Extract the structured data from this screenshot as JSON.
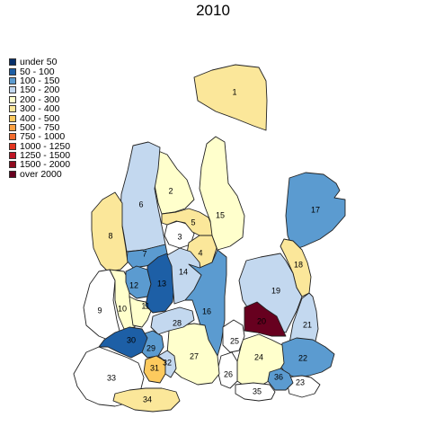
{
  "title": "2010",
  "legend": [
    {
      "label": "under 50",
      "color": "#08306b"
    },
    {
      "label": "50 - 100",
      "color": "#1d5fa6"
    },
    {
      "label": "100 - 150",
      "color": "#5b9bd0"
    },
    {
      "label": "150 - 200",
      "color": "#c3d8ef"
    },
    {
      "label": "200 - 300",
      "color": "#ffffcc"
    },
    {
      "label": "300 - 400",
      "color": "#fbe79a"
    },
    {
      "label": "400 - 500",
      "color": "#fdca5e"
    },
    {
      "label": "500 - 750",
      "color": "#fda142"
    },
    {
      "label": "750 - 1000",
      "color": "#f26b2d"
    },
    {
      "label": "1000 - 1250",
      "color": "#e2341f"
    },
    {
      "label": "1250 - 1500",
      "color": "#bf1424"
    },
    {
      "label": "1500 - 2000",
      "color": "#8f0a1e"
    },
    {
      "label": "over 2000",
      "color": "#67001f"
    }
  ],
  "regions": [
    {
      "id": "1",
      "color": "#fbe79a"
    },
    {
      "id": "2",
      "color": "#ffffcc"
    },
    {
      "id": "3",
      "color": "#ffffff"
    },
    {
      "id": "4",
      "color": "#fbe79a"
    },
    {
      "id": "5",
      "color": "#fbe79a"
    },
    {
      "id": "6",
      "color": "#c3d8ef"
    },
    {
      "id": "7",
      "color": "#5b9bd0"
    },
    {
      "id": "8",
      "color": "#fbe79a"
    },
    {
      "id": "9",
      "color": "#ffffff"
    },
    {
      "id": "10",
      "color": "#ffffcc"
    },
    {
      "id": "11",
      "color": "#ffffcc"
    },
    {
      "id": "12",
      "color": "#5b9bd0"
    },
    {
      "id": "13",
      "color": "#1d5fa6"
    },
    {
      "id": "14",
      "color": "#c3d8ef"
    },
    {
      "id": "15",
      "color": "#ffffcc"
    },
    {
      "id": "16",
      "color": "#5b9bd0"
    },
    {
      "id": "17",
      "color": "#5b9bd0"
    },
    {
      "id": "18",
      "color": "#fbe79a"
    },
    {
      "id": "19",
      "color": "#c3d8ef"
    },
    {
      "id": "20",
      "color": "#67001f"
    },
    {
      "id": "21",
      "color": "#c3d8ef"
    },
    {
      "id": "22",
      "color": "#5b9bd0"
    },
    {
      "id": "23",
      "color": "#ffffff"
    },
    {
      "id": "24",
      "color": "#ffffcc"
    },
    {
      "id": "25",
      "color": "#ffffff"
    },
    {
      "id": "26",
      "color": "#ffffff"
    },
    {
      "id": "27",
      "color": "#ffffcc"
    },
    {
      "id": "28",
      "color": "#c3d8ef"
    },
    {
      "id": "29",
      "color": "#5b9bd0"
    },
    {
      "id": "30",
      "color": "#1d5fa6"
    },
    {
      "id": "31",
      "color": "#fdca5e"
    },
    {
      "id": "32",
      "color": "#c3d8ef"
    },
    {
      "id": "33",
      "color": "#ffffff"
    },
    {
      "id": "34",
      "color": "#fbe79a"
    },
    {
      "id": "35",
      "color": "#ffffff"
    },
    {
      "id": "36",
      "color": "#5b9bd0"
    }
  ]
}
